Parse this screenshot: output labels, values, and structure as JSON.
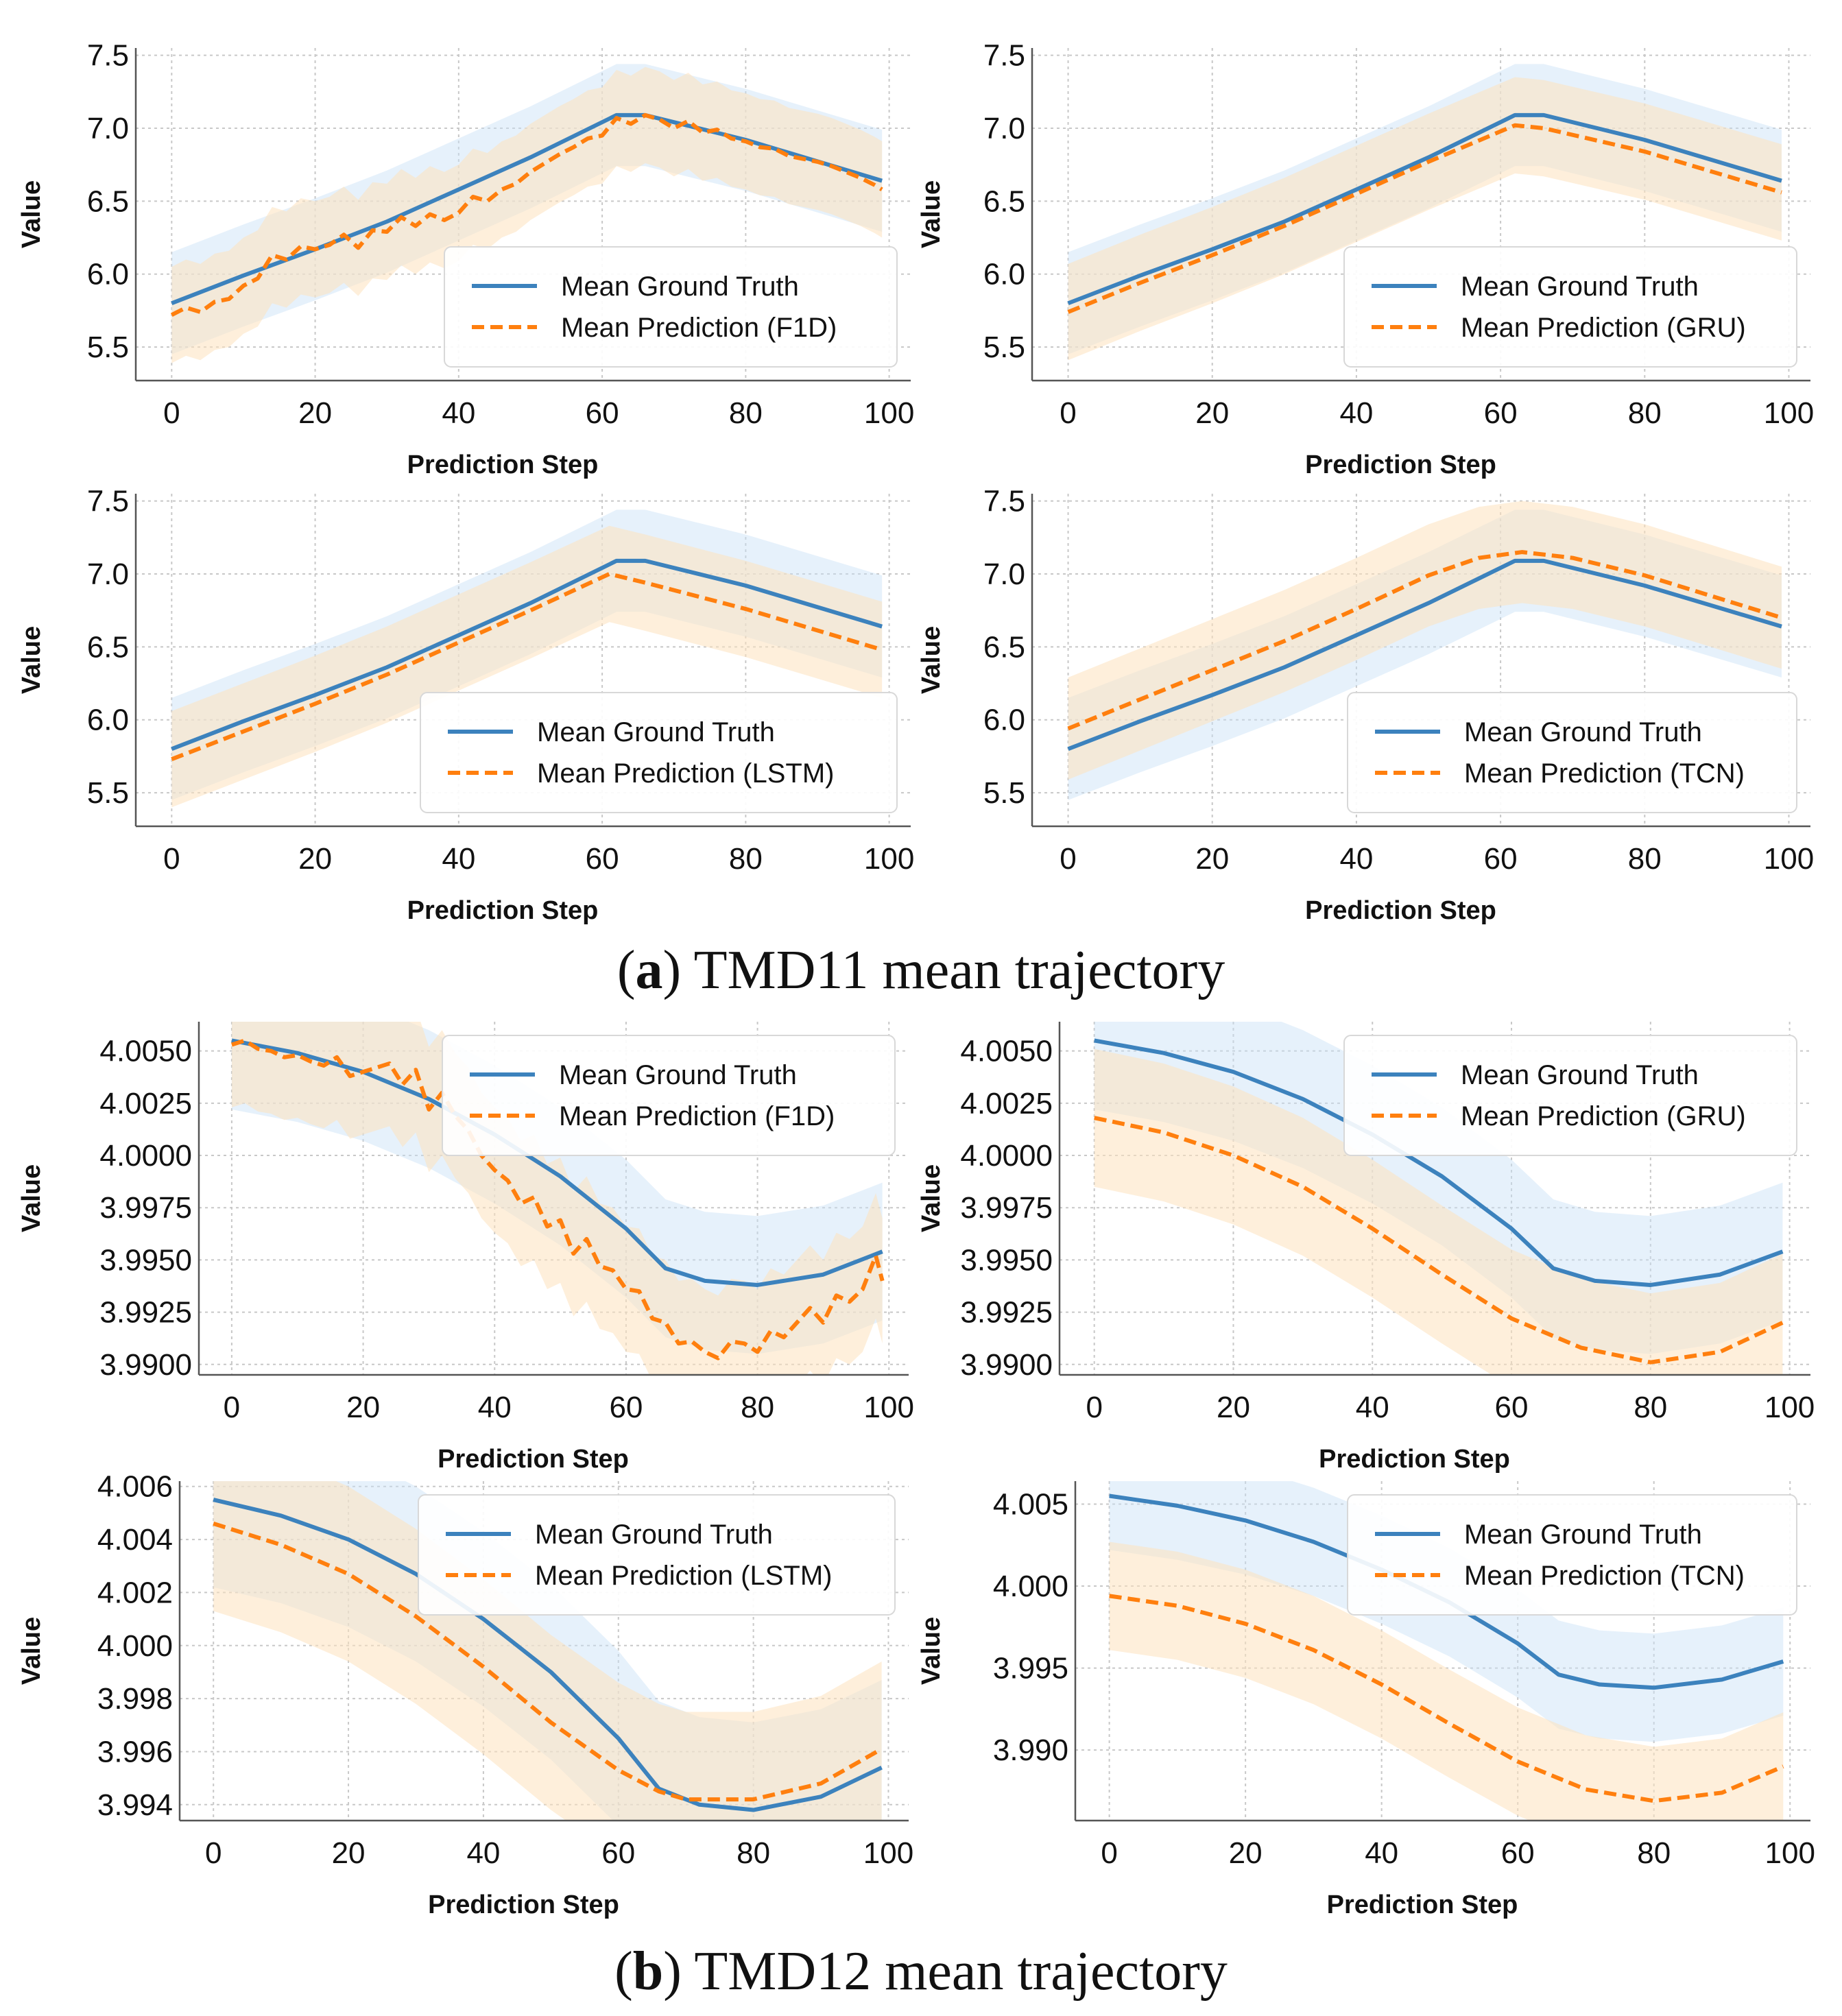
{
  "figure": {
    "caption_a_letter": "a",
    "caption_a_text": "TMD11 mean trajectory",
    "caption_b_letter": "b",
    "caption_b_text": "TMD12 mean trajectory"
  },
  "colors": {
    "ground_truth": "#3c82bd",
    "prediction": "#ff7f0e",
    "ground_truth_band": "#c8e0f7",
    "prediction_band": "#fde2bd",
    "grid": "#c8c8c8",
    "axis": "#555555"
  },
  "chart_data": [
    {
      "id": "tmd11-f1d",
      "type": "line",
      "group": "TMD11",
      "xlabel": "Prediction Step",
      "ylabel": "Value",
      "xlim": [
        -5,
        103
      ],
      "ylim": [
        5.27,
        7.55
      ],
      "xticks": [
        0,
        20,
        40,
        60,
        80,
        100
      ],
      "xtick_labels": [
        "0",
        "20",
        "40",
        "60",
        "80",
        "100"
      ],
      "yticks": [
        5.5,
        6.0,
        6.5,
        7.0,
        7.5
      ],
      "ytick_labels": [
        "5.5",
        "6.0",
        "6.5",
        "7.0",
        "7.5"
      ],
      "legend": [
        "Mean Ground Truth",
        "Mean Prediction (F1D)"
      ],
      "legend_position": "lower-right",
      "series": [
        {
          "name": "Mean Ground Truth",
          "x": [
            0,
            10,
            20,
            30,
            40,
            50,
            62,
            66,
            80,
            99
          ],
          "y": [
            5.8,
            5.99,
            6.17,
            6.36,
            6.58,
            6.8,
            7.09,
            7.09,
            6.92,
            6.64
          ],
          "band": 0.35
        },
        {
          "name": "Mean Prediction (F1D)",
          "x": [
            0,
            2,
            4,
            6,
            8,
            10,
            12,
            14,
            16,
            18,
            20,
            22,
            24,
            26,
            28,
            30,
            32,
            34,
            36,
            38,
            40,
            42,
            44,
            46,
            48,
            50,
            52,
            54,
            56,
            58,
            60,
            62,
            64,
            66,
            68,
            70,
            72,
            74,
            76,
            78,
            80,
            82,
            84,
            86,
            88,
            90,
            92,
            94,
            96,
            98,
            99
          ],
          "y": [
            5.72,
            5.77,
            5.74,
            5.81,
            5.83,
            5.92,
            5.97,
            6.13,
            6.1,
            6.19,
            6.17,
            6.2,
            6.27,
            6.18,
            6.3,
            6.29,
            6.39,
            6.33,
            6.41,
            6.37,
            6.42,
            6.53,
            6.5,
            6.58,
            6.62,
            6.7,
            6.76,
            6.82,
            6.87,
            6.93,
            6.95,
            7.07,
            7.03,
            7.09,
            7.06,
            7.0,
            7.05,
            6.97,
            6.99,
            6.93,
            6.91,
            6.87,
            6.86,
            6.81,
            6.79,
            6.77,
            6.74,
            6.7,
            6.66,
            6.61,
            6.58
          ],
          "band": 0.33
        }
      ]
    },
    {
      "id": "tmd11-gru",
      "type": "line",
      "group": "TMD11",
      "xlabel": "Prediction Step",
      "ylabel": "Value",
      "xlim": [
        -5,
        103
      ],
      "ylim": [
        5.27,
        7.55
      ],
      "xticks": [
        0,
        20,
        40,
        60,
        80,
        100
      ],
      "xtick_labels": [
        "0",
        "20",
        "40",
        "60",
        "80",
        "100"
      ],
      "yticks": [
        5.5,
        6.0,
        6.5,
        7.0,
        7.5
      ],
      "ytick_labels": [
        "5.5",
        "6.0",
        "6.5",
        "7.0",
        "7.5"
      ],
      "legend": [
        "Mean Ground Truth",
        "Mean Prediction (GRU)"
      ],
      "legend_position": "lower-right",
      "series": [
        {
          "name": "Mean Ground Truth",
          "x": [
            0,
            10,
            20,
            30,
            40,
            50,
            62,
            66,
            80,
            99
          ],
          "y": [
            5.8,
            5.99,
            6.17,
            6.36,
            6.58,
            6.8,
            7.09,
            7.09,
            6.92,
            6.64
          ],
          "band": 0.35
        },
        {
          "name": "Mean Prediction (GRU)",
          "x": [
            0,
            10,
            20,
            30,
            40,
            50,
            62,
            66,
            80,
            99
          ],
          "y": [
            5.74,
            5.94,
            6.13,
            6.33,
            6.55,
            6.77,
            7.02,
            7.0,
            6.84,
            6.56
          ],
          "band": 0.33
        }
      ]
    },
    {
      "id": "tmd11-lstm",
      "type": "line",
      "group": "TMD11",
      "xlabel": "Prediction Step",
      "ylabel": "Value",
      "xlim": [
        -5,
        103
      ],
      "ylim": [
        5.27,
        7.55
      ],
      "xticks": [
        0,
        20,
        40,
        60,
        80,
        100
      ],
      "xtick_labels": [
        "0",
        "20",
        "40",
        "60",
        "80",
        "100"
      ],
      "yticks": [
        5.5,
        6.0,
        6.5,
        7.0,
        7.5
      ],
      "ytick_labels": [
        "5.5",
        "6.0",
        "6.5",
        "7.0",
        "7.5"
      ],
      "legend": [
        "Mean Ground Truth",
        "Mean Prediction (LSTM)"
      ],
      "legend_position": "lower-right",
      "series": [
        {
          "name": "Mean Ground Truth",
          "x": [
            0,
            10,
            20,
            30,
            40,
            50,
            62,
            66,
            80,
            99
          ],
          "y": [
            5.8,
            5.99,
            6.17,
            6.36,
            6.58,
            6.8,
            7.09,
            7.09,
            6.92,
            6.64
          ],
          "band": 0.35
        },
        {
          "name": "Mean Prediction (LSTM)",
          "x": [
            0,
            10,
            20,
            30,
            40,
            50,
            61,
            66,
            80,
            99
          ],
          "y": [
            5.73,
            5.92,
            6.11,
            6.31,
            6.53,
            6.75,
            7.0,
            6.94,
            6.76,
            6.48
          ],
          "band": 0.33
        }
      ]
    },
    {
      "id": "tmd11-tcn",
      "type": "line",
      "group": "TMD11",
      "xlabel": "Prediction Step",
      "ylabel": "Value",
      "xlim": [
        -5,
        103
      ],
      "ylim": [
        5.27,
        7.55
      ],
      "xticks": [
        0,
        20,
        40,
        60,
        80,
        100
      ],
      "xtick_labels": [
        "0",
        "20",
        "40",
        "60",
        "80",
        "100"
      ],
      "yticks": [
        5.5,
        6.0,
        6.5,
        7.0,
        7.5
      ],
      "ytick_labels": [
        "5.5",
        "6.0",
        "6.5",
        "7.0",
        "7.5"
      ],
      "legend": [
        "Mean Ground Truth",
        "Mean Prediction (TCN)"
      ],
      "legend_position": "lower-right",
      "series": [
        {
          "name": "Mean Ground Truth",
          "x": [
            0,
            10,
            20,
            30,
            40,
            50,
            62,
            66,
            80,
            99
          ],
          "y": [
            5.8,
            5.99,
            6.17,
            6.36,
            6.58,
            6.8,
            7.09,
            7.09,
            6.92,
            6.64
          ],
          "band": 0.35
        },
        {
          "name": "Mean Prediction (TCN)",
          "x": [
            0,
            10,
            20,
            30,
            40,
            50,
            57,
            63,
            70,
            80,
            99
          ],
          "y": [
            5.94,
            6.14,
            6.34,
            6.54,
            6.76,
            6.99,
            7.11,
            7.15,
            7.11,
            6.99,
            6.7
          ],
          "band": 0.35
        }
      ]
    },
    {
      "id": "tmd12-f1d",
      "type": "line",
      "group": "TMD12",
      "xlabel": "Prediction Step",
      "ylabel": "Value",
      "xlim": [
        -5,
        103
      ],
      "ylim": [
        3.9895,
        4.0064
      ],
      "xticks": [
        0,
        20,
        40,
        60,
        80,
        100
      ],
      "xtick_labels": [
        "0",
        "20",
        "40",
        "60",
        "80",
        "100"
      ],
      "yticks": [
        3.99,
        3.9925,
        3.995,
        3.9975,
        4.0,
        4.0025,
        4.005
      ],
      "ytick_labels": [
        "3.9900",
        "3.9925",
        "3.9950",
        "3.9975",
        "4.0000",
        "4.0025",
        "4.0050"
      ],
      "legend": [
        "Mean Ground Truth",
        "Mean Prediction (F1D)"
      ],
      "legend_position": "upper-right",
      "series": [
        {
          "name": "Mean Ground Truth",
          "x": [
            0,
            10,
            20,
            30,
            40,
            50,
            60,
            66,
            72,
            80,
            90,
            99
          ],
          "y": [
            4.0055,
            4.0049,
            4.004,
            4.0027,
            4.001,
            3.999,
            3.9965,
            3.9946,
            3.994,
            3.9938,
            3.9943,
            3.9954
          ],
          "band": 0.0033
        },
        {
          "name": "Mean Prediction (F1D)",
          "x": [
            0,
            2,
            4,
            6,
            8,
            10,
            12,
            14,
            16,
            18,
            20,
            22,
            24,
            26,
            28,
            30,
            32,
            34,
            36,
            38,
            40,
            42,
            44,
            46,
            48,
            50,
            52,
            54,
            56,
            58,
            60,
            62,
            64,
            66,
            68,
            70,
            72,
            74,
            76,
            78,
            80,
            82,
            84,
            86,
            88,
            90,
            92,
            94,
            96,
            98,
            99
          ],
          "y": [
            4.0053,
            4.0055,
            4.0051,
            4.005,
            4.0047,
            4.0048,
            4.0045,
            4.0043,
            4.0047,
            4.0038,
            4.004,
            4.0042,
            4.0044,
            4.0034,
            4.0041,
            4.0022,
            4.003,
            4.0019,
            4.0012,
            4.0,
            3.9993,
            3.9988,
            3.9977,
            3.998,
            3.9966,
            3.9969,
            3.9953,
            3.996,
            3.9947,
            3.9945,
            3.9936,
            3.9935,
            3.9922,
            3.992,
            3.991,
            3.9911,
            3.9906,
            3.9903,
            3.9911,
            3.991,
            3.9906,
            3.9916,
            3.9913,
            3.992,
            3.9927,
            3.992,
            3.9933,
            3.993,
            3.9936,
            3.9952,
            3.994
          ],
          "band": 0.003
        }
      ]
    },
    {
      "id": "tmd12-gru",
      "type": "line",
      "group": "TMD12",
      "xlabel": "Prediction Step",
      "ylabel": "Value",
      "xlim": [
        -5,
        103
      ],
      "ylim": [
        3.9895,
        4.0064
      ],
      "xticks": [
        0,
        20,
        40,
        60,
        80,
        100
      ],
      "xtick_labels": [
        "0",
        "20",
        "40",
        "60",
        "80",
        "100"
      ],
      "yticks": [
        3.99,
        3.9925,
        3.995,
        3.9975,
        4.0,
        4.0025,
        4.005
      ],
      "ytick_labels": [
        "3.9900",
        "3.9925",
        "3.9950",
        "3.9975",
        "4.0000",
        "4.0025",
        "4.0050"
      ],
      "legend": [
        "Mean Ground Truth",
        "Mean Prediction (GRU)"
      ],
      "legend_position": "upper-right",
      "series": [
        {
          "name": "Mean Ground Truth",
          "x": [
            0,
            10,
            20,
            30,
            40,
            50,
            60,
            66,
            72,
            80,
            90,
            99
          ],
          "y": [
            4.0055,
            4.0049,
            4.004,
            4.0027,
            4.001,
            3.999,
            3.9965,
            3.9946,
            3.994,
            3.9938,
            3.9943,
            3.9954
          ],
          "band": 0.0033
        },
        {
          "name": "Mean Prediction (GRU)",
          "x": [
            0,
            10,
            20,
            30,
            40,
            50,
            60,
            70,
            80,
            90,
            99
          ],
          "y": [
            4.0018,
            4.0011,
            4.0,
            3.9985,
            3.9965,
            3.9943,
            3.9922,
            3.9908,
            3.9901,
            3.9906,
            3.992
          ],
          "band": 0.0033
        }
      ]
    },
    {
      "id": "tmd12-lstm",
      "type": "line",
      "group": "TMD12",
      "xlabel": "Prediction Step",
      "ylabel": "Value",
      "xlim": [
        -5,
        103
      ],
      "ylim": [
        3.9934,
        4.0062
      ],
      "xticks": [
        0,
        20,
        40,
        60,
        80,
        100
      ],
      "xtick_labels": [
        "0",
        "20",
        "40",
        "60",
        "80",
        "100"
      ],
      "yticks": [
        3.994,
        3.996,
        3.998,
        4.0,
        4.002,
        4.004,
        4.006
      ],
      "ytick_labels": [
        "3.994",
        "3.996",
        "3.998",
        "4.000",
        "4.002",
        "4.004",
        "4.006"
      ],
      "legend": [
        "Mean Ground Truth",
        "Mean Prediction (LSTM)"
      ],
      "legend_position": "upper-right",
      "series": [
        {
          "name": "Mean Ground Truth",
          "x": [
            0,
            10,
            20,
            30,
            40,
            50,
            60,
            66,
            72,
            80,
            90,
            99
          ],
          "y": [
            4.0055,
            4.0049,
            4.004,
            4.0027,
            4.001,
            3.999,
            3.9965,
            3.9946,
            3.994,
            3.9938,
            3.9943,
            3.9954
          ],
          "band": 0.0033
        },
        {
          "name": "Mean Prediction (LSTM)",
          "x": [
            0,
            10,
            20,
            30,
            40,
            50,
            60,
            66,
            70,
            80,
            90,
            99
          ],
          "y": [
            4.0046,
            4.0038,
            4.0027,
            4.0011,
            3.9992,
            3.9971,
            3.9953,
            3.9945,
            3.9942,
            3.9942,
            3.9948,
            3.9961
          ],
          "band": 0.0033
        }
      ]
    },
    {
      "id": "tmd12-tcn",
      "type": "line",
      "group": "TMD12",
      "xlabel": "Prediction Step",
      "ylabel": "Value",
      "xlim": [
        -5,
        103
      ],
      "ylim": [
        3.9857,
        4.0064
      ],
      "xticks": [
        0,
        20,
        40,
        60,
        80,
        100
      ],
      "xtick_labels": [
        "0",
        "20",
        "40",
        "60",
        "80",
        "100"
      ],
      "yticks": [
        3.99,
        3.995,
        4.0,
        4.005
      ],
      "ytick_labels": [
        "3.990",
        "3.995",
        "4.000",
        "4.005"
      ],
      "legend": [
        "Mean Ground Truth",
        "Mean Prediction (TCN)"
      ],
      "legend_position": "upper-right",
      "series": [
        {
          "name": "Mean Ground Truth",
          "x": [
            0,
            10,
            20,
            30,
            40,
            50,
            60,
            66,
            72,
            80,
            90,
            99
          ],
          "y": [
            4.0055,
            4.0049,
            4.004,
            4.0027,
            4.001,
            3.999,
            3.9965,
            3.9946,
            3.994,
            3.9938,
            3.9943,
            3.9954
          ],
          "band": 0.0033
        },
        {
          "name": "Mean Prediction (TCN)",
          "x": [
            0,
            10,
            20,
            30,
            40,
            50,
            60,
            70,
            80,
            90,
            99
          ],
          "y": [
            3.9994,
            3.9988,
            3.9977,
            3.9961,
            3.994,
            3.9916,
            3.9893,
            3.9876,
            3.9869,
            3.9874,
            3.989
          ],
          "band": 0.0033
        }
      ]
    }
  ]
}
